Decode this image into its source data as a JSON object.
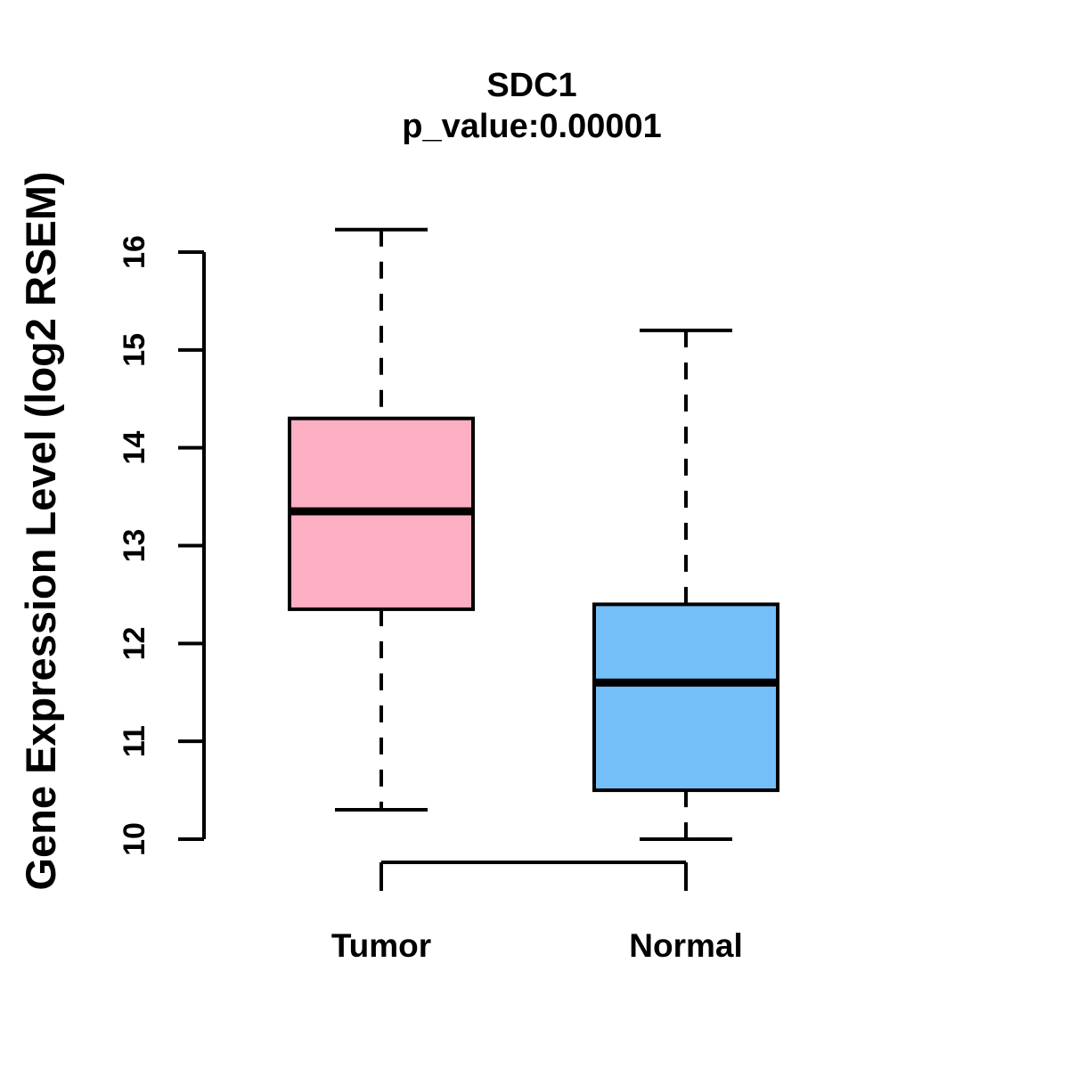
{
  "title": "SDC1",
  "subtitle": "p_value:0.00001",
  "y_axis": {
    "label": "Gene Expression Level (log2 RSEM)"
  },
  "chart_data": {
    "type": "boxplot",
    "title": "SDC1",
    "subtitle": "p_value:0.00001",
    "ylabel": "Gene Expression Level (log2 RSEM)",
    "xlabel": "",
    "ylim": [
      10,
      16.4
    ],
    "y_ticks": [
      10,
      11,
      12,
      13,
      14,
      15,
      16
    ],
    "grid": false,
    "legend": "none",
    "categories": [
      "Tumor",
      "Normal"
    ],
    "series": [
      {
        "name": "Tumor",
        "whisker_low": 10.3,
        "q1": 12.35,
        "median": 13.35,
        "q3": 14.3,
        "whisker_high": 16.23,
        "fill_color": "#FCAEC3"
      },
      {
        "name": "Normal",
        "whisker_low": 10.0,
        "q1": 10.5,
        "median": 11.6,
        "q3": 12.4,
        "whisker_high": 15.2,
        "fill_color": "#74BFF8"
      }
    ],
    "stroke_color": "#000000",
    "background_color": "#FFFFFF",
    "whisker_style": "dashed"
  }
}
